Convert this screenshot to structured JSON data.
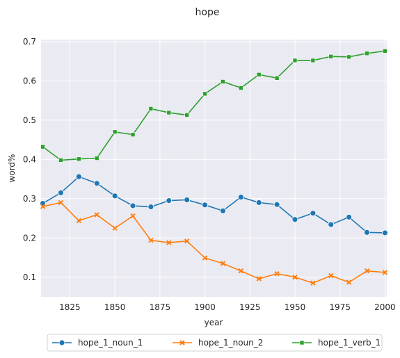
{
  "chart_data": {
    "type": "line",
    "title": "hope",
    "xlabel": "year",
    "ylabel": "word%",
    "xlim": [
      1809,
      2001
    ],
    "ylim": [
      0.05,
      0.705
    ],
    "xticks": [
      1825,
      1850,
      1875,
      1900,
      1925,
      1950,
      1975,
      2000
    ],
    "yticks": [
      0.1,
      0.2,
      0.3,
      0.4,
      0.5,
      0.6,
      0.7
    ],
    "grid": true,
    "legend_placement": "bottom-center",
    "x": [
      1810,
      1820,
      1830,
      1840,
      1850,
      1860,
      1870,
      1880,
      1890,
      1900,
      1910,
      1920,
      1930,
      1940,
      1950,
      1960,
      1970,
      1980,
      1990,
      2000
    ],
    "series": [
      {
        "name": "hope_1_noun_1",
        "color": "#1f77b4",
        "marker": "circle",
        "values": [
          0.288,
          0.315,
          0.356,
          0.339,
          0.307,
          0.282,
          0.279,
          0.295,
          0.297,
          0.284,
          0.269,
          0.304,
          0.29,
          0.285,
          0.247,
          0.263,
          0.234,
          0.253,
          0.214,
          0.213
        ]
      },
      {
        "name": "hope_1_noun_2",
        "color": "#ff7f0e",
        "marker": "x",
        "values": [
          0.28,
          0.29,
          0.244,
          0.259,
          0.225,
          0.256,
          0.194,
          0.188,
          0.192,
          0.149,
          0.135,
          0.116,
          0.096,
          0.109,
          0.1,
          0.085,
          0.104,
          0.087,
          0.116,
          0.112
        ]
      },
      {
        "name": "hope_1_verb_1",
        "color": "#2ca02c",
        "marker": "square",
        "values": [
          0.432,
          0.398,
          0.401,
          0.403,
          0.47,
          0.463,
          0.529,
          0.519,
          0.513,
          0.567,
          0.598,
          0.582,
          0.616,
          0.607,
          0.652,
          0.652,
          0.662,
          0.661,
          0.67,
          0.676
        ]
      }
    ]
  }
}
